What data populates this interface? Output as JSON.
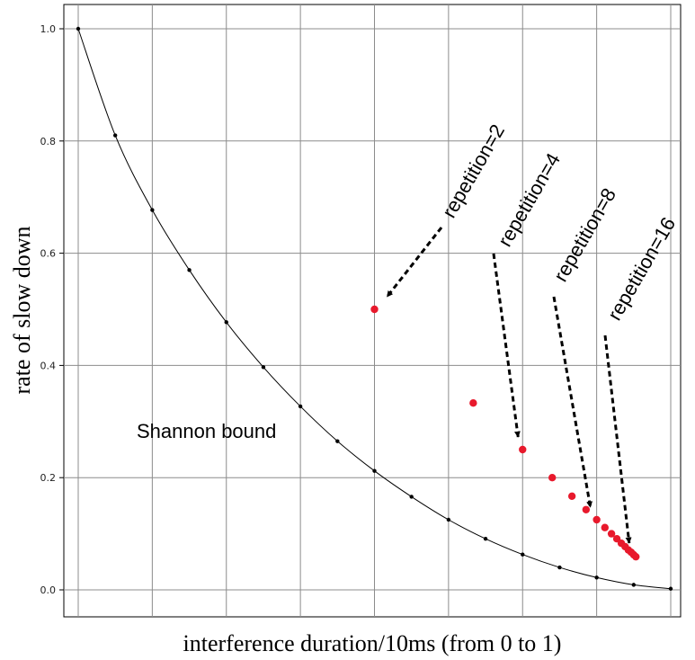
{
  "chart_data": {
    "type": "scatter",
    "title": "",
    "xlabel": "interference duration/10ms  (from 0 to 1)",
    "ylabel": "rate of slow down",
    "xlim": [
      0,
      1
    ],
    "ylim": [
      0,
      1
    ],
    "grid": true,
    "x_vertical_gridlines": [
      0,
      0.125,
      0.25,
      0.375,
      0.5,
      0.625,
      0.75,
      0.875,
      1.0
    ],
    "y_ticks": [
      0.0,
      0.2,
      0.4,
      0.6,
      0.8,
      1.0
    ],
    "y_tick_labels": [
      "0.0",
      "0.2",
      "0.4",
      "0.6",
      "0.8",
      "1.0"
    ],
    "series": [
      {
        "style": "curve-with-points",
        "color": "#000000",
        "x": [
          0,
          0.0625,
          0.125,
          0.1875,
          0.25,
          0.3125,
          0.375,
          0.4375,
          0.5,
          0.5625,
          0.625,
          0.6875,
          0.75,
          0.8125,
          0.875,
          0.9375,
          1.0
        ],
        "y": [
          1.0,
          0.81,
          0.677,
          0.57,
          0.477,
          0.397,
          0.327,
          0.265,
          0.212,
          0.166,
          0.125,
          0.091,
          0.063,
          0.04,
          0.022,
          0.009,
          0.002
        ]
      },
      {
        "style": "points",
        "color": "#e8192c",
        "x": [
          0.5,
          0.6667,
          0.75,
          0.8,
          0.8333,
          0.8571,
          0.875,
          0.8889,
          0.9,
          0.9091,
          0.9167,
          0.9231,
          0.9286,
          0.9333,
          0.9375,
          0.9412
        ],
        "y": [
          0.5,
          0.333,
          0.25,
          0.2,
          0.167,
          0.143,
          0.125,
          0.111,
          0.1,
          0.091,
          0.083,
          0.077,
          0.071,
          0.067,
          0.0625,
          0.059
        ]
      }
    ],
    "annotations": [
      {
        "text": "Shannon bound"
      },
      {
        "text": "repetition=2",
        "target": [
          0.5,
          0.5
        ]
      },
      {
        "text": "repetition=4",
        "target": [
          0.75,
          0.25
        ]
      },
      {
        "text": "repetition=8",
        "target": [
          0.875,
          0.125
        ]
      },
      {
        "text": "repetition=16",
        "target": [
          0.9375,
          0.0625
        ]
      }
    ]
  }
}
